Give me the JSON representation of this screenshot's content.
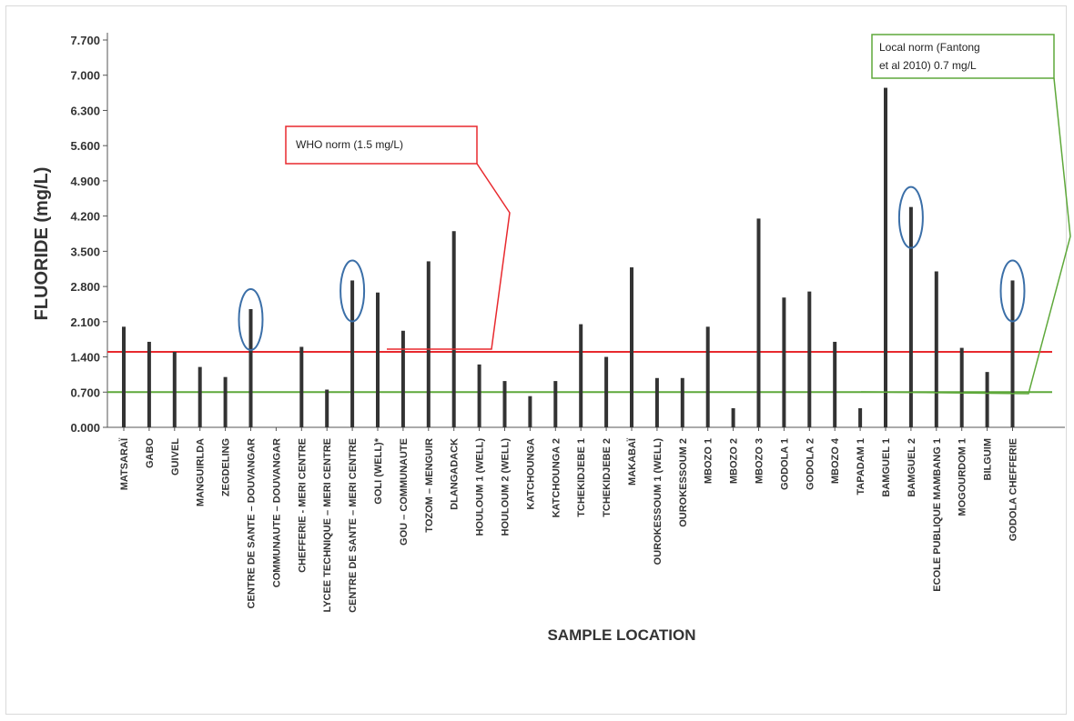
{
  "chart_data": {
    "type": "bar",
    "title": "",
    "xlabel": "SAMPLE LOCATION",
    "ylabel": "FLUORIDE (mg/L)",
    "ylim": [
      0,
      7.7
    ],
    "yticks": [
      "0.000",
      "0.700",
      "1.400",
      "2.100",
      "2.800",
      "3.500",
      "4.200",
      "4.900",
      "5.600",
      "6.300",
      "7.000",
      "7.700"
    ],
    "categories": [
      "MATSARAÏ",
      "GABO",
      "GUIVEL",
      "MANGUIRLDA",
      "ZEGDELING",
      "CENTRE DE SANTE – DOUVANGAR",
      "COMMUNAUTE – DOUVANGAR",
      "CHEFFERIE - MERI CENTRE",
      "LYCEE TECHNIQUE – MERI CENTRE",
      "CENTRE DE SANTE – MERI CENTRE",
      "GOLI (WELL)*",
      "GOU – COMMUNAUTE",
      "TOZOM – MENGUIR",
      "DLANGADACK",
      "HOULOUM 1 (WELL)",
      "HOULOUM 2 (WELL)",
      "KATCHOUNGA",
      "KATCHOUNGA 2",
      "TCHEKIDJEBE 1",
      "TCHEKIDJEBE 2",
      "MAKABAÏ",
      "OUROKESSOUM 1 (WELL)",
      "OUROKESSOUM 2",
      "MBOZO 1",
      "MBOZO 2",
      "MBOZO 3",
      "GODOLA 1",
      "GODOLA 2",
      "MBOZO 4",
      "TAPADAM 1",
      "BAMGUEL 1",
      "BAMGUEL 2",
      "ECOLE PUBLIQUE MAMBANG 1",
      "MOGOURDOM 1",
      "BILGUIM",
      "GODOLA CHEFFERIE"
    ],
    "values": [
      2.0,
      1.7,
      1.5,
      1.2,
      1.0,
      2.35,
      0,
      1.6,
      0.75,
      2.92,
      2.68,
      1.92,
      3.3,
      3.9,
      1.25,
      0.92,
      0.62,
      0.92,
      2.05,
      1.4,
      3.18,
      0.98,
      0.98,
      2.0,
      0.38,
      4.15,
      2.58,
      2.7,
      1.7,
      0.38,
      6.75,
      4.38,
      3.1,
      1.58,
      1.1,
      2.92
    ],
    "reference_lines": [
      {
        "name": "WHO norm",
        "value": 1.5,
        "color": "#e8292e"
      },
      {
        "name": "Local norm",
        "value": 0.7,
        "color": "#5ea83a"
      }
    ],
    "annotations": [
      {
        "text": "WHO norm (1.5 mg/L)",
        "color": "#e8292e"
      },
      {
        "text": "Local norm (Fantong et al 2010) 0.7 mg/L",
        "color": "#5ea83a"
      }
    ],
    "highlighted_categories": [
      "CENTRE DE SANTE – DOUVANGAR",
      "CENTRE DE SANTE – MERI CENTRE",
      "BAMGUEL 2",
      "GODOLA CHEFFERIE"
    ],
    "colors": {
      "bar": "#333333",
      "who": "#e8292e",
      "local": "#5ea83a",
      "highlight": "#3b6fa8",
      "axis": "#555555"
    }
  }
}
